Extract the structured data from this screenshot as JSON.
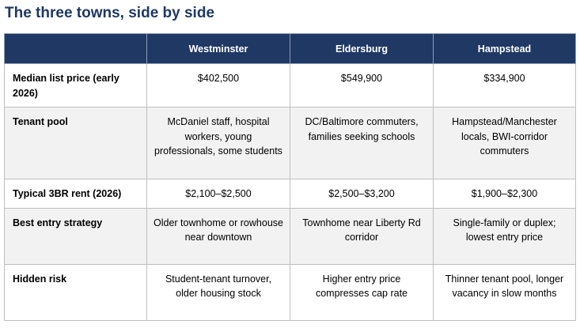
{
  "title": "The three towns, side by side",
  "columns": [
    "",
    "Westminster",
    "Eldersburg",
    "Hampstead"
  ],
  "rows": [
    {
      "label": "Median list price (early 2026)",
      "values": [
        "$402,500",
        "$549,900",
        "$334,900"
      ]
    },
    {
      "label": "Tenant pool",
      "values": [
        "McDaniel staff, hospital workers, young professionals, some students",
        "DC/Baltimore commuters, families seeking schools",
        "Hampstead/Manchester locals, BWI-corridor commuters"
      ]
    },
    {
      "label": "Typical 3BR rent (2026)",
      "values": [
        "$2,100–$2,500",
        "$2,500–$3,200",
        "$1,900–$2,300"
      ]
    },
    {
      "label": "Best entry strategy",
      "values": [
        "Older townhome or rowhouse near downtown",
        "Townhome near Liberty Rd corridor",
        "Single-family or duplex; lowest entry price"
      ]
    },
    {
      "label": "Hidden risk",
      "values": [
        "Student-tenant turnover, older housing stock",
        "Higher entry price compresses cap rate",
        "Thinner tenant pool, longer vacancy in slow months"
      ]
    }
  ],
  "colors": {
    "header_bg": "#1f3864",
    "header_text": "#ffffff",
    "title_text": "#1f3864",
    "alt_row_bg": "#f2f2f2",
    "border": "#bfbfbf"
  }
}
